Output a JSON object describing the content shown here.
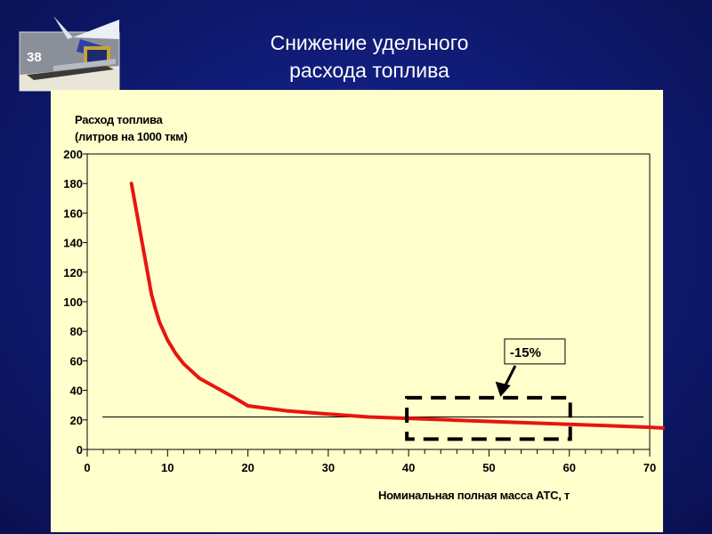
{
  "slide": {
    "number": "38"
  },
  "title": {
    "line1": "Снижение удельного",
    "line2": "расхода топлива"
  },
  "colors": {
    "background": "#101c78",
    "panel": "#ffffcc",
    "curve": "#e8150f",
    "text": "#000000"
  },
  "chart_data": {
    "type": "line",
    "ylabel_line1": "Расход топлива",
    "ylabel_line2": "(литров на 1000 ткм)",
    "xlabel": "Номинальная полная масса АТС, т",
    "xlim": [
      0,
      70
    ],
    "ylim": [
      0,
      200
    ],
    "x_ticks": [
      0,
      10,
      20,
      30,
      40,
      50,
      60,
      70
    ],
    "y_ticks": [
      0,
      20,
      40,
      60,
      80,
      100,
      120,
      140,
      160,
      180,
      200
    ],
    "grid": false,
    "series": [
      {
        "x": [
          5.5,
          6,
          6.5,
          7,
          7.5,
          8,
          8.5,
          9,
          10,
          11,
          12,
          14,
          16,
          18,
          20,
          25,
          30,
          35,
          40,
          45,
          50,
          55,
          60,
          65,
          70,
          72
        ],
        "y": [
          180,
          165,
          150,
          135,
          120,
          105,
          95,
          86,
          74,
          65,
          58,
          48,
          42,
          36,
          29.5,
          26,
          24,
          22,
          21,
          20,
          19,
          18,
          17,
          16,
          15,
          14.5
        ]
      }
    ],
    "reference_line": {
      "y": 22,
      "x": [
        1,
        70
      ]
    },
    "annotation": {
      "label": "-15%",
      "box_x": [
        40,
        60
      ],
      "box_y": [
        7,
        35
      ]
    }
  }
}
